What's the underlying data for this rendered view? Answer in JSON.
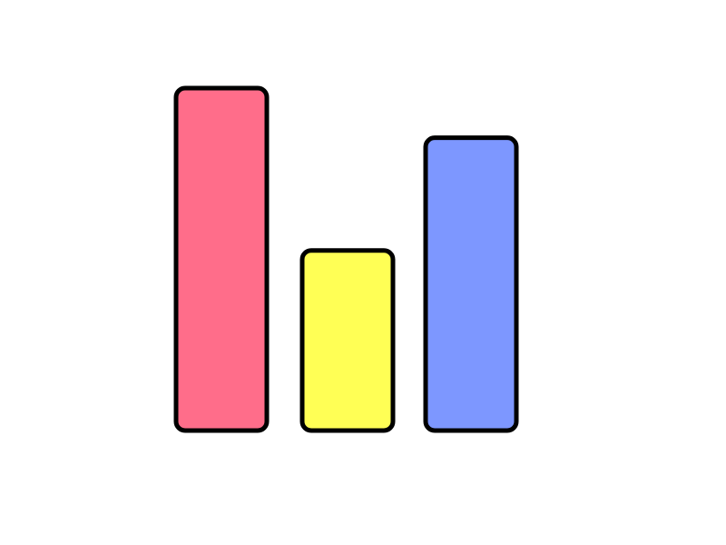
{
  "chart_data": {
    "type": "bar",
    "values": [
      100,
      52.6,
      85.5
    ],
    "ylim": [
      0,
      100
    ],
    "grid": false,
    "colors": [
      "#ff6d8a",
      "#ffff55",
      "#7d97ff"
    ],
    "stroke_color": "#000000",
    "background": "#ffffff"
  }
}
